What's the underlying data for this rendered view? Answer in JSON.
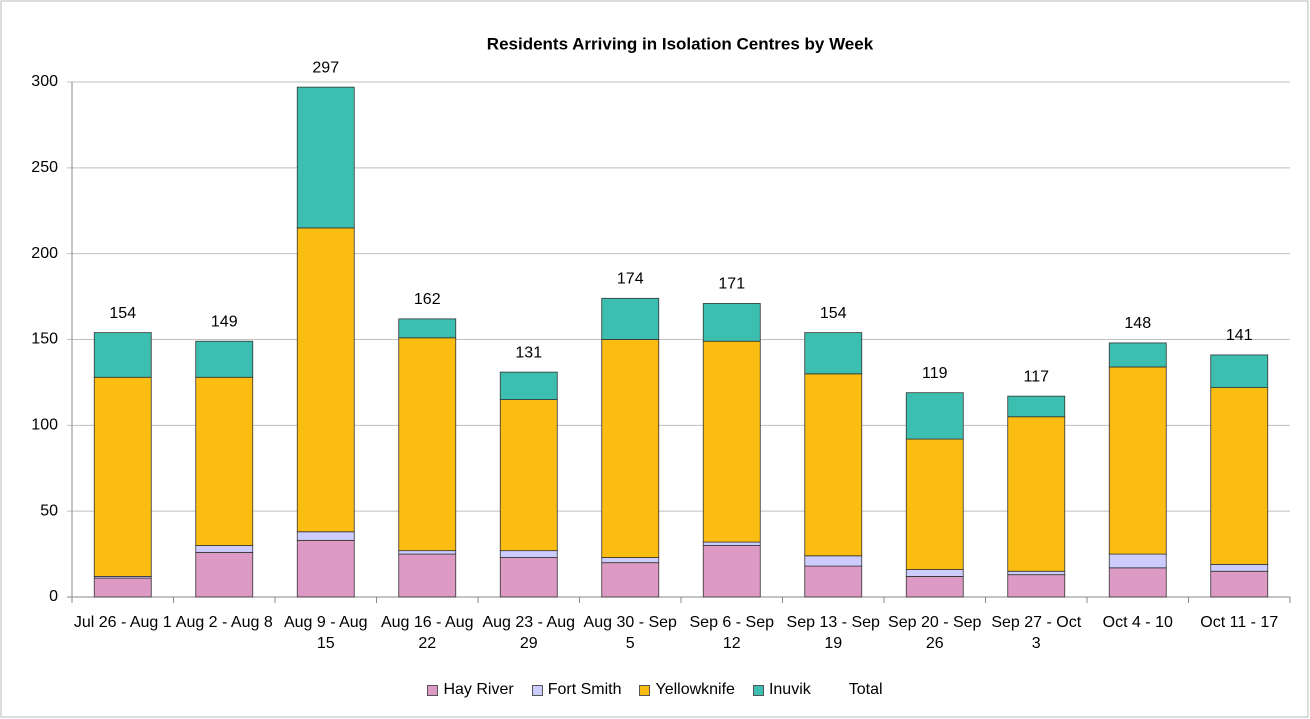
{
  "chart_data": {
    "type": "bar",
    "stacked": true,
    "title": "Residents Arriving in Isolation Centres by Week",
    "categories": [
      "Jul 26 - Aug 1",
      "Aug 2 - Aug 8",
      "Aug 9 - Aug 15",
      "Aug 16 - Aug 22",
      "Aug 23 - Aug 29",
      "Aug 30 - Sep 5",
      "Sep 6 - Sep 12",
      "Sep 13 - Sep 19",
      "Sep 20 - Sep 26",
      "Sep 27 - Oct 3",
      "Oct 4 - 10",
      "Oct 11 - 17"
    ],
    "series": [
      {
        "name": "Hay River",
        "color": "#dc9ac4",
        "values": [
          11,
          26,
          33,
          25,
          23,
          20,
          30,
          18,
          12,
          13,
          17,
          15
        ]
      },
      {
        "name": "Fort Smith",
        "color": "#ccccff",
        "values": [
          1,
          4,
          5,
          2,
          4,
          3,
          2,
          6,
          4,
          2,
          8,
          4
        ]
      },
      {
        "name": "Yellowknife",
        "color": "#fbbd12",
        "values": [
          116,
          98,
          177,
          124,
          88,
          127,
          117,
          106,
          76,
          90,
          109,
          103
        ]
      },
      {
        "name": "Inuvik",
        "color": "#3cbfb0",
        "values": [
          26,
          21,
          82,
          11,
          16,
          24,
          22,
          24,
          27,
          12,
          14,
          19
        ]
      },
      {
        "name": "Total",
        "values": [
          154,
          149,
          297,
          162,
          131,
          174,
          171,
          154,
          119,
          117,
          148,
          141
        ]
      }
    ],
    "ylim": [
      0,
      300
    ],
    "yticks": [
      0,
      50,
      100,
      150,
      200,
      250,
      300
    ],
    "grid": true,
    "legend": "bottom"
  }
}
